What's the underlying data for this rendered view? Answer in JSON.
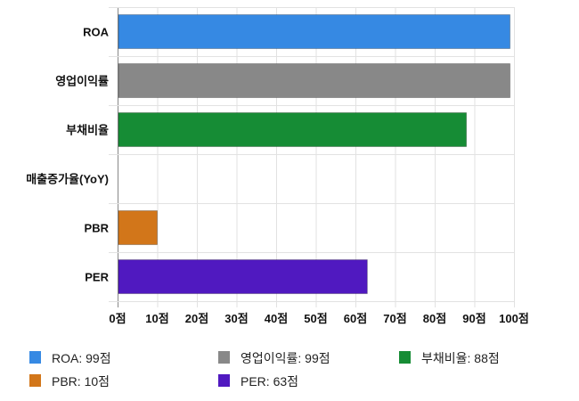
{
  "chart_data": {
    "type": "bar",
    "orientation": "horizontal",
    "categories": [
      "ROA",
      "영업이익률",
      "부채비율",
      "매출증가율(YoY)",
      "PBR",
      "PER"
    ],
    "values": [
      99,
      99,
      88,
      0,
      10,
      63
    ],
    "colors": [
      "#3689e3",
      "#888888",
      "#168c35",
      "#cccccc",
      "#d2761a",
      "#5019c0"
    ],
    "xlim": [
      0,
      100
    ],
    "xticks": [
      0,
      10,
      20,
      30,
      40,
      50,
      60,
      70,
      80,
      90,
      100
    ],
    "tick_labels": [
      "0점",
      "10점",
      "20점",
      "30점",
      "40점",
      "50점",
      "60점",
      "70점",
      "80점",
      "90점",
      "100점"
    ],
    "grid": true,
    "legend_placement": "bottom",
    "legend": [
      {
        "label": "ROA: 99점",
        "color": "#3689e3"
      },
      {
        "label": "영업이익률: 99점",
        "color": "#888888"
      },
      {
        "label": "부채비율: 88점",
        "color": "#168c35"
      },
      {
        "label": "PBR: 10점",
        "color": "#d2761a"
      },
      {
        "label": "PER: 63점",
        "color": "#5019c0"
      }
    ]
  }
}
